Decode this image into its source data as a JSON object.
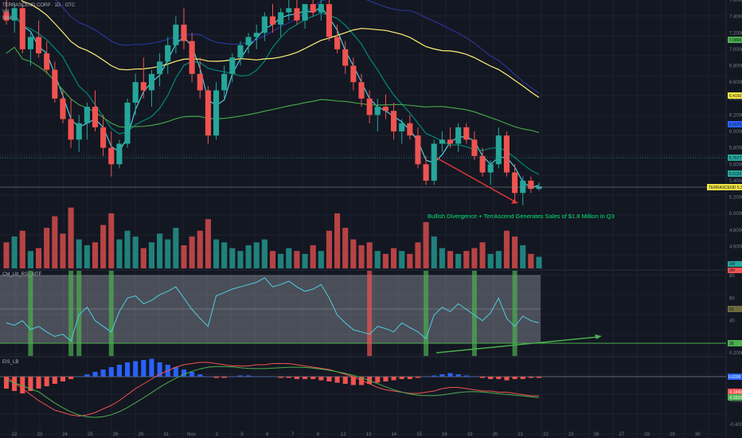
{
  "header": {
    "symbol": "TERRASCEND CORP · 1D · OTC",
    "vol": "Vol",
    "ma": "MA1",
    "rsi_pane": "CM_UIt_RSI_MTF",
    "macd_pane": "EIS_LB"
  },
  "annotation": "Bullish Divergence + TerrAscend Generates Sales of $1.8 Million in Q3",
  "x_axis": {
    "ticks": [
      "22",
      "23",
      "24",
      "25",
      "26",
      "29",
      "31",
      "Nov",
      "2",
      "5",
      "6",
      "7",
      "8",
      "12",
      "13",
      "14",
      "15",
      "16",
      "19",
      "20",
      "21",
      "22",
      "23",
      "26",
      "27",
      "28",
      "29",
      "30"
    ]
  },
  "price_axis": {
    "ticks": [
      "7.6000",
      "7.4000",
      "7.2000",
      "7.0000",
      "6.8000",
      "6.6000",
      "6.4000",
      "6.2000",
      "6.0000",
      "5.8000",
      "5.6000",
      "5.4000",
      "5.2000",
      "5.0000",
      "4.8000",
      "4.6000",
      "4.4000"
    ],
    "tags": [
      {
        "text": "7.0800",
        "color": "#4caf50"
      },
      {
        "text": "6.4150",
        "color": "#f5e642"
      },
      {
        "text": "6.0670",
        "color": "#2962ff"
      },
      {
        "text": "5.7677",
        "color": "#26a69a"
      },
      {
        "text": "5.5133",
        "color": "#26a69a"
      },
      {
        "text": "TERRASCEND 5.3340",
        "color": "#f5e642"
      }
    ]
  },
  "rsi_axis": {
    "ticks": [
      "80",
      "60",
      "40",
      "20"
    ],
    "tags": [
      {
        "text": "50",
        "color": "#6d6a3f"
      },
      {
        "text": "38",
        "color": "#4caf50"
      }
    ]
  },
  "macd_axis": {
    "ticks": [
      "0.2000",
      "0.0000",
      "-0.2000",
      "-0.4000"
    ],
    "tags": [
      {
        "text": "0.0200",
        "color": "#2962ff"
      },
      {
        "text": "-0.1840",
        "color": "#ef5350"
      },
      {
        "text": "-0.2010",
        "color": "#4caf50"
      }
    ]
  },
  "vol_axis": {
    "tags": [
      {
        "text": "1M",
        "color": "#26a69a"
      },
      {
        "text": "2M",
        "color": "#ef5350"
      }
    ]
  },
  "colors": {
    "up": "#26a69a",
    "down": "#ef5350",
    "ma_cyan": "#4dd0e1",
    "ma_teal": "#00897b",
    "ma_yellow": "#fff176",
    "ma_green": "#43a047",
    "ma_blue": "#283593",
    "annotation": "#00e676",
    "arrow_red": "#e53935",
    "arrow_green": "#4caf50"
  },
  "chart_data": {
    "type": "candlestick",
    "title": "TERRASCEND CORP · 1D · OTC",
    "ylim": [
      4.4,
      7.6
    ],
    "candles": [
      {
        "o": 7.45,
        "h": 7.6,
        "l": 7.3,
        "c": 7.35
      },
      {
        "o": 7.35,
        "h": 7.55,
        "l": 7.2,
        "c": 7.5
      },
      {
        "o": 7.5,
        "h": 7.55,
        "l": 6.95,
        "c": 7.0
      },
      {
        "o": 7.0,
        "h": 7.2,
        "l": 6.8,
        "c": 7.15
      },
      {
        "o": 7.15,
        "h": 7.35,
        "l": 6.9,
        "c": 6.95
      },
      {
        "o": 6.95,
        "h": 7.1,
        "l": 6.7,
        "c": 6.75
      },
      {
        "o": 6.75,
        "h": 6.85,
        "l": 6.35,
        "c": 6.4
      },
      {
        "o": 6.4,
        "h": 6.5,
        "l": 6.1,
        "c": 6.15
      },
      {
        "o": 6.15,
        "h": 6.4,
        "l": 5.8,
        "c": 5.9
      },
      {
        "o": 5.9,
        "h": 6.2,
        "l": 5.75,
        "c": 6.1
      },
      {
        "o": 6.1,
        "h": 6.35,
        "l": 5.9,
        "c": 6.3
      },
      {
        "o": 6.3,
        "h": 6.5,
        "l": 6.0,
        "c": 6.05
      },
      {
        "o": 6.05,
        "h": 6.2,
        "l": 5.7,
        "c": 5.8
      },
      {
        "o": 5.8,
        "h": 6.0,
        "l": 5.45,
        "c": 5.6
      },
      {
        "o": 5.6,
        "h": 5.9,
        "l": 5.55,
        "c": 5.85
      },
      {
        "o": 5.85,
        "h": 6.4,
        "l": 5.8,
        "c": 6.35
      },
      {
        "o": 6.35,
        "h": 6.7,
        "l": 6.2,
        "c": 6.6
      },
      {
        "o": 6.6,
        "h": 6.9,
        "l": 6.4,
        "c": 6.5
      },
      {
        "o": 6.5,
        "h": 6.75,
        "l": 6.3,
        "c": 6.7
      },
      {
        "o": 6.7,
        "h": 6.95,
        "l": 6.55,
        "c": 6.85
      },
      {
        "o": 6.85,
        "h": 7.15,
        "l": 6.7,
        "c": 7.05
      },
      {
        "o": 7.05,
        "h": 7.4,
        "l": 6.95,
        "c": 7.3
      },
      {
        "o": 7.3,
        "h": 7.5,
        "l": 7.0,
        "c": 7.1
      },
      {
        "o": 7.1,
        "h": 7.2,
        "l": 6.6,
        "c": 6.7
      },
      {
        "o": 6.7,
        "h": 6.9,
        "l": 6.4,
        "c": 6.5
      },
      {
        "o": 6.5,
        "h": 6.55,
        "l": 5.85,
        "c": 5.95
      },
      {
        "o": 5.95,
        "h": 6.6,
        "l": 5.9,
        "c": 6.5
      },
      {
        "o": 6.5,
        "h": 6.8,
        "l": 6.4,
        "c": 6.7
      },
      {
        "o": 6.7,
        "h": 6.95,
        "l": 6.6,
        "c": 6.9
      },
      {
        "o": 6.9,
        "h": 7.1,
        "l": 6.8,
        "c": 7.05
      },
      {
        "o": 7.05,
        "h": 7.2,
        "l": 6.95,
        "c": 7.15
      },
      {
        "o": 7.15,
        "h": 7.3,
        "l": 7.0,
        "c": 7.2
      },
      {
        "o": 7.2,
        "h": 7.45,
        "l": 7.1,
        "c": 7.4
      },
      {
        "o": 7.4,
        "h": 7.55,
        "l": 7.2,
        "c": 7.3
      },
      {
        "o": 7.3,
        "h": 7.5,
        "l": 7.15,
        "c": 7.45
      },
      {
        "o": 7.45,
        "h": 7.6,
        "l": 7.35,
        "c": 7.5
      },
      {
        "o": 7.5,
        "h": 7.65,
        "l": 7.3,
        "c": 7.35
      },
      {
        "o": 7.35,
        "h": 7.55,
        "l": 7.25,
        "c": 7.55
      },
      {
        "o": 7.55,
        "h": 7.6,
        "l": 7.4,
        "c": 7.45
      },
      {
        "o": 7.45,
        "h": 7.6,
        "l": 7.35,
        "c": 7.55
      },
      {
        "o": 7.55,
        "h": 7.6,
        "l": 7.1,
        "c": 7.15
      },
      {
        "o": 7.15,
        "h": 7.3,
        "l": 6.95,
        "c": 7.0
      },
      {
        "o": 7.0,
        "h": 7.1,
        "l": 6.7,
        "c": 6.8
      },
      {
        "o": 6.8,
        "h": 6.9,
        "l": 6.5,
        "c": 6.6
      },
      {
        "o": 6.6,
        "h": 6.7,
        "l": 6.3,
        "c": 6.4
      },
      {
        "o": 6.4,
        "h": 6.5,
        "l": 6.1,
        "c": 6.2
      },
      {
        "o": 6.2,
        "h": 6.4,
        "l": 6.0,
        "c": 6.3
      },
      {
        "o": 6.3,
        "h": 6.45,
        "l": 6.15,
        "c": 6.25
      },
      {
        "o": 6.25,
        "h": 6.35,
        "l": 5.9,
        "c": 6.0
      },
      {
        "o": 6.0,
        "h": 6.15,
        "l": 5.85,
        "c": 6.1
      },
      {
        "o": 6.1,
        "h": 6.2,
        "l": 5.9,
        "c": 5.95
      },
      {
        "o": 5.95,
        "h": 6.05,
        "l": 5.55,
        "c": 5.6
      },
      {
        "o": 5.6,
        "h": 5.7,
        "l": 5.35,
        "c": 5.4
      },
      {
        "o": 5.4,
        "h": 5.9,
        "l": 5.35,
        "c": 5.85
      },
      {
        "o": 5.85,
        "h": 6.0,
        "l": 5.75,
        "c": 5.9
      },
      {
        "o": 5.9,
        "h": 6.05,
        "l": 5.8,
        "c": 5.85
      },
      {
        "o": 5.85,
        "h": 6.1,
        "l": 5.75,
        "c": 6.05
      },
      {
        "o": 6.05,
        "h": 6.1,
        "l": 5.85,
        "c": 5.9
      },
      {
        "o": 5.9,
        "h": 6.0,
        "l": 5.65,
        "c": 5.7
      },
      {
        "o": 5.7,
        "h": 5.8,
        "l": 5.45,
        "c": 5.5
      },
      {
        "o": 5.5,
        "h": 5.65,
        "l": 5.35,
        "c": 5.6
      },
      {
        "o": 5.6,
        "h": 6.05,
        "l": 5.55,
        "c": 5.95
      },
      {
        "o": 5.95,
        "h": 6.0,
        "l": 5.45,
        "c": 5.5
      },
      {
        "o": 5.5,
        "h": 5.6,
        "l": 5.15,
        "c": 5.25
      },
      {
        "o": 5.25,
        "h": 5.45,
        "l": 5.1,
        "c": 5.4
      },
      {
        "o": 5.4,
        "h": 5.45,
        "l": 5.25,
        "c": 5.3
      },
      {
        "o": 5.3,
        "h": 5.38,
        "l": 5.28,
        "c": 5.33
      }
    ],
    "volume": [
      0.9,
      1.1,
      1.3,
      0.6,
      0.7,
      1.4,
      1.8,
      1.2,
      2.1,
      1.0,
      0.8,
      0.9,
      1.5,
      1.9,
      1.0,
      1.3,
      1.1,
      0.7,
      0.9,
      1.2,
      1.0,
      1.4,
      0.8,
      1.1,
      1.3,
      1.7,
      1.0,
      0.9,
      0.7,
      0.6,
      0.8,
      0.9,
      1.0,
      0.6,
      0.5,
      0.7,
      0.6,
      0.5,
      0.8,
      0.6,
      1.3,
      1.9,
      1.4,
      1.0,
      0.8,
      0.9,
      0.6,
      0.5,
      0.7,
      0.6,
      0.5,
      0.9,
      1.6,
      1.1,
      0.7,
      0.6,
      0.5,
      0.6,
      0.7,
      0.9,
      0.5,
      0.6,
      1.3,
      1.1,
      0.8,
      0.5,
      0.4
    ],
    "rsi": [
      38,
      36,
      40,
      32,
      35,
      30,
      26,
      28,
      22,
      45,
      52,
      40,
      35,
      30,
      48,
      60,
      62,
      55,
      58,
      63,
      66,
      70,
      60,
      50,
      42,
      35,
      62,
      65,
      68,
      70,
      72,
      74,
      78,
      70,
      72,
      75,
      70,
      66,
      68,
      72,
      60,
      45,
      38,
      32,
      30,
      28,
      35,
      33,
      30,
      38,
      34,
      30,
      24,
      45,
      52,
      48,
      55,
      50,
      45,
      40,
      47,
      60,
      42,
      35,
      44,
      40,
      38
    ],
    "rsi_highlights": [
      3,
      4,
      5,
      15,
      16,
      17,
      19,
      20,
      21,
      49,
      51,
      53,
      57,
      61,
      63,
      71,
      72,
      80,
      98,
      100,
      102,
      109,
      111
    ],
    "macd": [
      0.0,
      -0.05,
      -0.1,
      -0.15,
      -0.2,
      -0.24,
      -0.28,
      -0.3,
      -0.32,
      -0.33,
      -0.32,
      -0.3,
      -0.27,
      -0.24,
      -0.2,
      -0.15,
      -0.1,
      -0.06,
      -0.02,
      0.02,
      0.05,
      0.08,
      0.1,
      0.11,
      0.12,
      0.12,
      0.11,
      0.1,
      0.09,
      0.09,
      0.09,
      0.1,
      0.1,
      0.11,
      0.11,
      0.11,
      0.1,
      0.09,
      0.08,
      0.07,
      0.06,
      0.04,
      0.02,
      0.0,
      -0.03,
      -0.06,
      -0.09,
      -0.11,
      -0.12,
      -0.13,
      -0.14,
      -0.14,
      -0.13,
      -0.12,
      -0.1,
      -0.09,
      -0.09,
      -0.1,
      -0.11,
      -0.12,
      -0.12,
      -0.13,
      -0.13,
      -0.14,
      -0.15,
      -0.16,
      -0.16
    ],
    "macd_hist": [
      -0.1,
      -0.12,
      -0.14,
      -0.12,
      -0.1,
      -0.08,
      -0.06,
      -0.04,
      -0.02,
      0.0,
      0.02,
      0.04,
      0.06,
      0.08,
      0.1,
      0.12,
      0.13,
      0.14,
      0.15,
      0.12,
      0.1,
      0.08,
      0.06,
      0.04,
      0.02,
      0.0,
      -0.01,
      -0.01,
      0.0,
      0.01,
      0.01,
      0.0,
      0.0,
      0.0,
      -0.01,
      -0.01,
      -0.02,
      -0.02,
      -0.02,
      -0.03,
      -0.04,
      -0.05,
      -0.06,
      -0.07,
      -0.07,
      -0.06,
      -0.05,
      -0.04,
      -0.03,
      -0.02,
      -0.02,
      -0.01,
      0.0,
      0.01,
      0.02,
      0.03,
      0.02,
      0.01,
      0.0,
      -0.01,
      -0.02,
      -0.02,
      -0.03,
      -0.02,
      -0.02,
      -0.01,
      -0.01
    ]
  }
}
